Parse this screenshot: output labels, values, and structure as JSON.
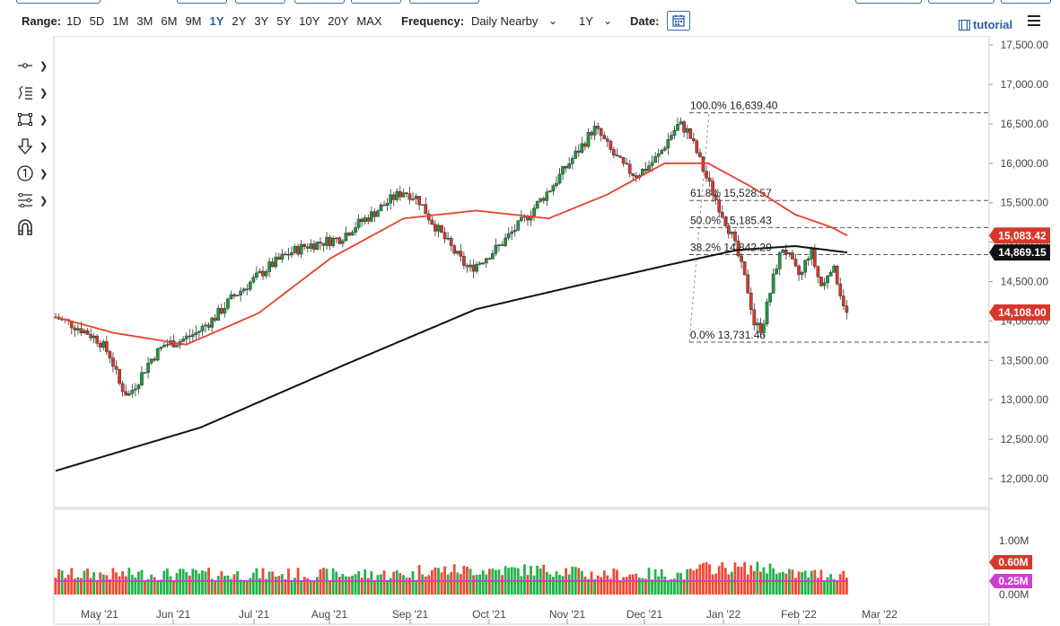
{
  "toolbar": {
    "range_label": "Range:",
    "ranges": [
      "1D",
      "5D",
      "1M",
      "3M",
      "6M",
      "9M",
      "1Y",
      "2Y",
      "3Y",
      "5Y",
      "10Y",
      "20Y",
      "MAX"
    ],
    "active_range": "1Y",
    "frequency_label": "Frequency:",
    "frequency_value": "Daily Nearby",
    "period_value": "1Y",
    "date_label": "Date:",
    "tutorial_label": "tutorial"
  },
  "icons": {
    "tools": [
      "crosshair-icon",
      "trendline-icon",
      "shape-icon",
      "arrow-icon",
      "counter-icon",
      "fib-tool-icon",
      "magnet-icon"
    ],
    "date": "calendar-icon",
    "menu": "hamburger-menu-icon"
  },
  "colors": {
    "up_candle": "#1a9c3e",
    "down_candle": "#d9372b",
    "ma_fast": "#e8412c",
    "ma_slow": "#111111",
    "volume_up": "#22b34a",
    "volume_down": "#ee4a34",
    "volume_avg": "#cc3fd1",
    "accent": "#2b5ca8"
  },
  "chart_data": {
    "type": "candlestick",
    "x_labels": [
      "May '21",
      "Jun '21",
      "Jul '21",
      "Aug '21",
      "Sep '21",
      "Oct '21",
      "Nov '21",
      "Dec '21",
      "Jan '22",
      "Feb '22",
      "Mar '22"
    ],
    "y_ticks": [
      "12,000.00",
      "12,500.00",
      "13,000.00",
      "13,500.00",
      "14,000.00",
      "14,500.00",
      "15,000.00",
      "15,500.00",
      "16,000.00",
      "16,500.00",
      "17,000.00",
      "17,500.00"
    ],
    "ylim": [
      11800,
      17550
    ],
    "price_trend": [
      [
        0,
        14050
      ],
      [
        12,
        13950
      ],
      [
        22,
        13850
      ],
      [
        30,
        13750
      ],
      [
        38,
        13550
      ],
      [
        44,
        13200
      ],
      [
        50,
        13050
      ],
      [
        57,
        13250
      ],
      [
        65,
        13500
      ],
      [
        75,
        13700
      ],
      [
        86,
        13750
      ],
      [
        97,
        13850
      ],
      [
        110,
        14050
      ],
      [
        122,
        14300
      ],
      [
        135,
        14500
      ],
      [
        148,
        14700
      ],
      [
        160,
        14850
      ],
      [
        172,
        14950
      ],
      [
        184,
        15000
      ],
      [
        196,
        15050
      ],
      [
        206,
        15200
      ],
      [
        218,
        15350
      ],
      [
        232,
        15550
      ],
      [
        240,
        15650
      ],
      [
        250,
        15550
      ],
      [
        258,
        15300
      ],
      [
        268,
        15050
      ],
      [
        276,
        14850
      ],
      [
        285,
        14650
      ],
      [
        296,
        14800
      ],
      [
        306,
        14950
      ],
      [
        316,
        15150
      ],
      [
        324,
        15300
      ],
      [
        333,
        15500
      ],
      [
        342,
        15700
      ],
      [
        350,
        15900
      ],
      [
        358,
        16100
      ],
      [
        366,
        16300
      ],
      [
        371,
        16450
      ],
      [
        376,
        16350
      ],
      [
        383,
        16150
      ],
      [
        392,
        15950
      ],
      [
        400,
        15850
      ],
      [
        408,
        15950
      ],
      [
        416,
        16100
      ],
      [
        424,
        16350
      ],
      [
        430,
        16500
      ],
      [
        436,
        16400
      ],
      [
        442,
        16150
      ],
      [
        448,
        15850
      ],
      [
        454,
        15600
      ],
      [
        460,
        15350
      ],
      [
        466,
        15100
      ],
      [
        472,
        14750
      ],
      [
        478,
        14350
      ],
      [
        482,
        13950
      ],
      [
        487,
        13900
      ],
      [
        492,
        14300
      ],
      [
        497,
        14700
      ],
      [
        502,
        14950
      ],
      [
        506,
        14800
      ],
      [
        510,
        14650
      ],
      [
        514,
        14550
      ],
      [
        518,
        14800
      ],
      [
        521,
        14900
      ],
      [
        525,
        14600
      ],
      [
        529,
        14400
      ],
      [
        534,
        14700
      ],
      [
        538,
        14600
      ],
      [
        542,
        14300
      ],
      [
        546,
        14108
      ]
    ],
    "series": [
      {
        "name": "",
        "points": [
          [
            0,
            14050
          ],
          [
            40,
            13850
          ],
          [
            90,
            13700
          ],
          [
            140,
            14100
          ],
          [
            190,
            14800
          ],
          [
            240,
            15300
          ],
          [
            290,
            15400
          ],
          [
            340,
            15300
          ],
          [
            380,
            15600
          ],
          [
            420,
            16000
          ],
          [
            450,
            16000
          ],
          [
            480,
            15700
          ],
          [
            510,
            15350
          ],
          [
            535,
            15190
          ],
          [
            546,
            15083.42
          ]
        ]
      },
      {
        "name": "",
        "points": [
          [
            0,
            12100
          ],
          [
            100,
            12650
          ],
          [
            200,
            13450
          ],
          [
            290,
            14150
          ],
          [
            360,
            14450
          ],
          [
            420,
            14700
          ],
          [
            470,
            14900
          ],
          [
            510,
            14950
          ],
          [
            546,
            14869.15
          ]
        ]
      }
    ],
    "last_price": "14,108.00",
    "ma_fast_last": "15,083.42",
    "ma_slow_last": "14,869.15",
    "fibonacci": [
      {
        "label": "100.0% 16,639.40",
        "value": 16639.4
      },
      {
        "label": "61.8% 15,528.57",
        "value": 15528.57
      },
      {
        "label": "50.0% 15,185.43",
        "value": 15185.43
      },
      {
        "label": "38.2% 14,842.29",
        "value": 14842.29
      },
      {
        "label": "0.0% 13,731.46",
        "value": 13731.46
      }
    ],
    "volume": {
      "ticks": [
        "1.00M",
        "0.00M"
      ],
      "last_volume": "0.60M",
      "avg_volume": "0.25M",
      "ylim": [
        0,
        1.2
      ]
    }
  }
}
